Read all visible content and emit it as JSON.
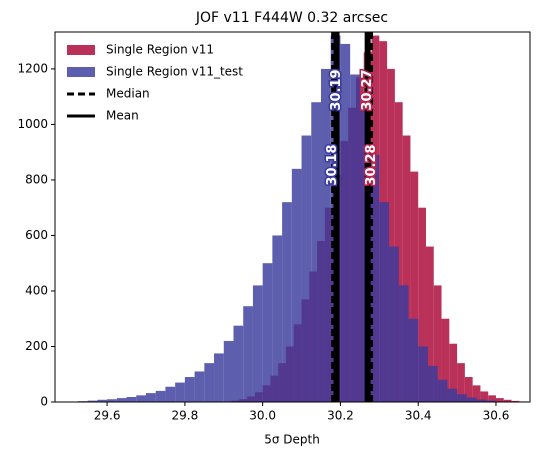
{
  "chart_data": {
    "type": "histogram",
    "title": "JOF v11 F444W 0.32 arcsec",
    "x_label": "5σ Depth",
    "xlim": [
      29.466,
      30.6875
    ],
    "ylim": [
      0,
      1333
    ],
    "xticks": [
      29.6,
      29.8,
      {
        "value": 30,
        "label": "30.0"
      },
      30.2,
      30.4,
      30.6
    ],
    "yticks": [
      0,
      200,
      400,
      600,
      800,
      1000,
      1200
    ],
    "series": [
      {
        "name": "Single Region v11",
        "color": "#b5264f",
        "bins": [
          29.9,
          29.92,
          29.94,
          29.96,
          29.98,
          30.0,
          30.02,
          30.04,
          30.06,
          30.08,
          30.1,
          30.12,
          30.14,
          30.16,
          30.18,
          30.2,
          30.22,
          30.24,
          30.26,
          30.28,
          30.3,
          30.32,
          30.34,
          30.36,
          30.38,
          30.4,
          30.42,
          30.44,
          30.46,
          30.48,
          30.5,
          30.52,
          30.54,
          30.56,
          30.58,
          30.6,
          30.62,
          30.64,
          30.66,
          30.68
        ],
        "values": [
          2,
          5,
          10,
          20,
          35,
          60,
          95,
          140,
          200,
          280,
          370,
          470,
          580,
          700,
          820,
          940,
          1060,
          1170,
          1260,
          1320,
          1300,
          1200,
          1080,
          960,
          830,
          700,
          560,
          420,
          300,
          210,
          140,
          90,
          60,
          38,
          24,
          14,
          8,
          4,
          2
        ]
      },
      {
        "name": "Single Region v11_test",
        "color": "#3b3b9c",
        "bins": [
          29.525,
          29.55,
          29.575,
          29.6,
          29.625,
          29.65,
          29.675,
          29.7,
          29.725,
          29.75,
          29.775,
          29.8,
          29.825,
          29.85,
          29.875,
          29.9,
          29.925,
          29.95,
          29.975,
          30.0,
          30.025,
          30.05,
          30.075,
          30.1,
          30.125,
          30.15,
          30.175,
          30.2,
          30.225,
          30.25,
          30.275,
          30.3,
          30.325,
          30.35,
          30.375,
          30.4,
          30.425,
          30.45,
          30.475,
          30.5,
          30.525,
          30.55,
          30.575,
          30.6,
          30.625
        ],
        "values": [
          3,
          5,
          8,
          10,
          14,
          18,
          24,
          32,
          40,
          55,
          70,
          90,
          110,
          140,
          175,
          220,
          275,
          345,
          420,
          500,
          600,
          720,
          840,
          960,
          1080,
          1200,
          1320,
          1290,
          1180,
          1050,
          890,
          720,
          560,
          420,
          300,
          200,
          130,
          80,
          48,
          28,
          16,
          9,
          5,
          2
        ]
      }
    ],
    "reference_lines": [
      {
        "name": "Median",
        "style": "dashed"
      },
      {
        "name": "Mean",
        "style": "solid"
      }
    ],
    "markers": [
      {
        "series": 1,
        "line": 0,
        "value": 30.18
      },
      {
        "series": 1,
        "line": 1,
        "value": 30.19
      },
      {
        "series": 0,
        "line": 0,
        "value": 30.28
      },
      {
        "series": 0,
        "line": 1,
        "value": 30.27
      }
    ],
    "legend": "upper left"
  }
}
